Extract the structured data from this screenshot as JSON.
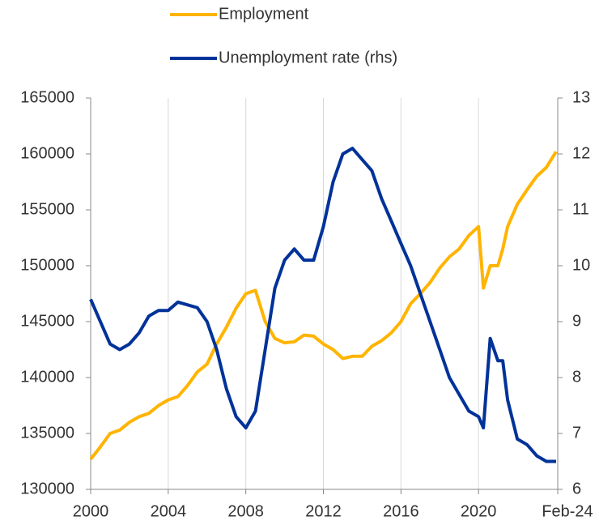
{
  "chart_data": {
    "type": "line",
    "x": [
      2000,
      2000.5,
      2001,
      2001.5,
      2002,
      2002.5,
      2003,
      2003.5,
      2004,
      2004.5,
      2005,
      2005.5,
      2006,
      2006.5,
      2007,
      2007.5,
      2008,
      2008.5,
      2009,
      2009.5,
      2010,
      2010.5,
      2011,
      2011.5,
      2012,
      2012.5,
      2013,
      2013.5,
      2014,
      2014.5,
      2015,
      2015.5,
      2016,
      2016.5,
      2017,
      2017.5,
      2018,
      2018.5,
      2019,
      2019.5,
      2020,
      2020.25,
      2020.6,
      2021,
      2021.25,
      2021.5,
      2022,
      2022.5,
      2023,
      2023.5,
      2024
    ],
    "series": [
      {
        "name": "Employment",
        "color": "#ffb400",
        "values": [
          132700,
          133800,
          135000,
          135300,
          136000,
          136500,
          136800,
          137500,
          138000,
          138300,
          139300,
          140500,
          141200,
          143000,
          144500,
          146200,
          147500,
          147800,
          145000,
          143500,
          143100,
          143200,
          143800,
          143700,
          143000,
          142500,
          141700,
          141900,
          141900,
          142800,
          143300,
          144000,
          145000,
          146600,
          147500,
          148500,
          149800,
          150800,
          151500,
          152700,
          153500,
          148000,
          150000,
          150000,
          151500,
          153500,
          155500,
          156800,
          158000,
          158800,
          160200
        ]
      },
      {
        "name": "Unemployment rate (rhs)",
        "color": "#003299",
        "axis": "y2",
        "values": [
          9.4,
          9.0,
          8.6,
          8.5,
          8.6,
          8.8,
          9.1,
          9.2,
          9.2,
          9.35,
          9.3,
          9.25,
          9.0,
          8.5,
          7.8,
          7.3,
          7.1,
          7.4,
          8.5,
          9.6,
          10.1,
          10.3,
          10.1,
          10.1,
          10.7,
          11.5,
          12.0,
          12.1,
          11.9,
          11.7,
          11.2,
          10.8,
          10.4,
          10.0,
          9.5,
          9.0,
          8.5,
          8.0,
          7.7,
          7.4,
          7.3,
          7.1,
          8.7,
          8.3,
          8.3,
          7.6,
          6.9,
          6.8,
          6.6,
          6.5,
          6.5
        ]
      }
    ],
    "xlim": [
      2000,
      2024.083
    ],
    "xticks": [
      2000,
      2004,
      2008,
      2012,
      2016,
      2020,
      {
        "value": 2024.083,
        "label": "Feb-24"
      }
    ],
    "ylim": [
      130000,
      165000
    ],
    "yticks": [
      130000,
      135000,
      140000,
      145000,
      150000,
      155000,
      160000,
      165000
    ],
    "y2lim": [
      6,
      13
    ],
    "y2ticks": [
      6,
      7,
      8,
      9,
      10,
      11,
      12,
      13
    ],
    "grid": true
  }
}
